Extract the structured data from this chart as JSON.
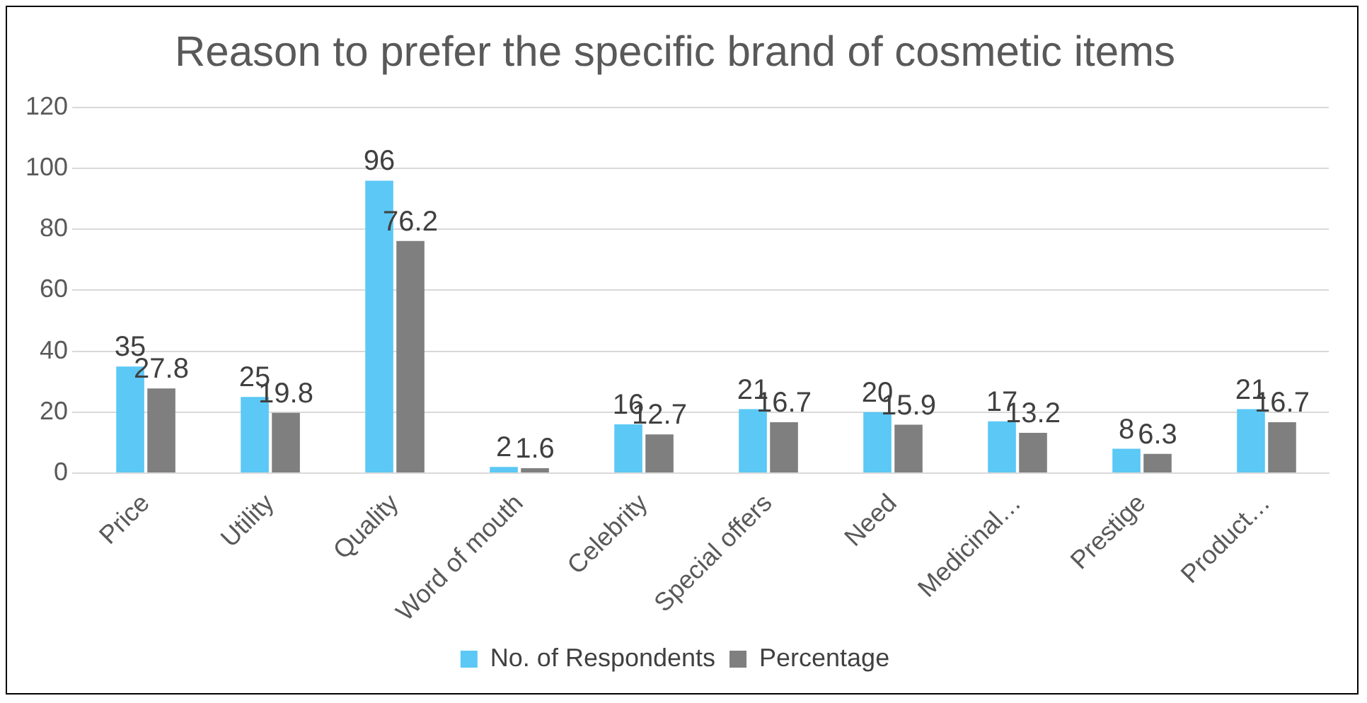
{
  "chart_data": {
    "type": "bar",
    "title": "Reason to prefer the specific brand of cosmetic items",
    "categories": [
      "Price",
      "Utility",
      "Quality",
      "Word of mouth",
      "Celebrity",
      "Special offers",
      "Need",
      "Medicinal…",
      "Prestige",
      "Product…"
    ],
    "series": [
      {
        "name": "No. of Respondents",
        "color": "#5bc8f5",
        "values": [
          35,
          25,
          96,
          2,
          16,
          21,
          20,
          17,
          8,
          21
        ]
      },
      {
        "name": "Percentage",
        "color": "#7f7f7f",
        "values": [
          27.8,
          19.8,
          76.2,
          1.6,
          12.7,
          16.7,
          15.9,
          13.2,
          6.3,
          16.7
        ]
      }
    ],
    "ylim": [
      0,
      120
    ],
    "yticks": [
      0,
      20,
      40,
      60,
      80,
      100,
      120
    ],
    "grid": "y",
    "legend": "bottom",
    "data_labels": true
  }
}
